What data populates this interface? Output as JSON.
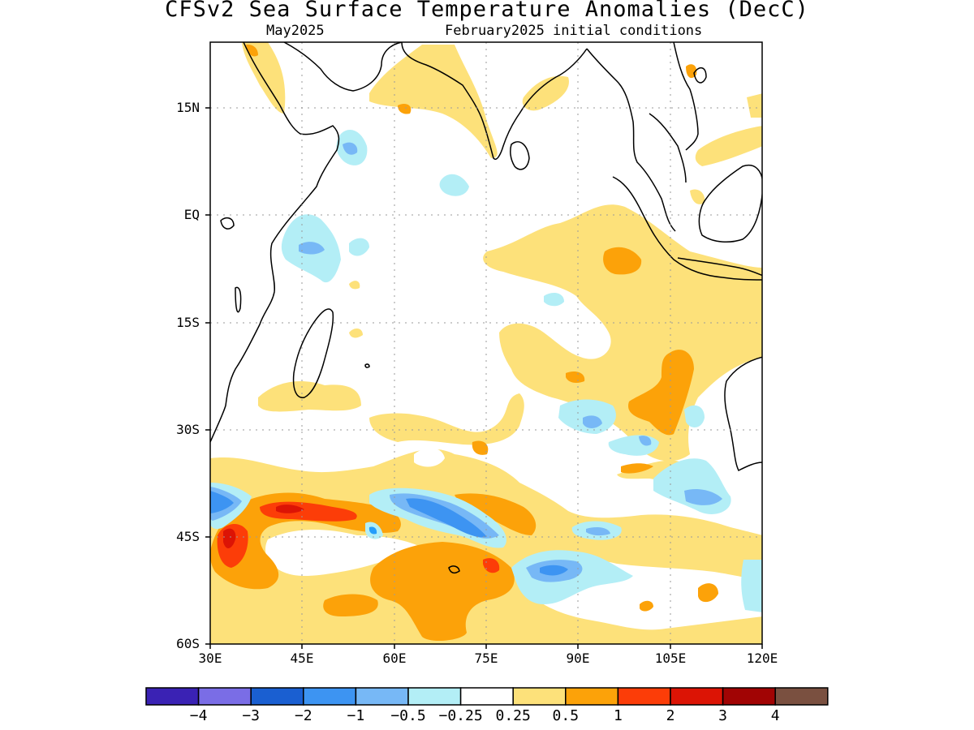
{
  "title": "CFSv2 Sea Surface Temperature Anomalies (DecC)",
  "subtitle_left": "May2025",
  "subtitle_right": "February2025 initial conditions",
  "axes": {
    "lat_labels": [
      "15N",
      "EQ",
      "15S",
      "30S",
      "45S",
      "60S"
    ],
    "lon_labels": [
      "30E",
      "45E",
      "60E",
      "75E",
      "90E",
      "105E",
      "120E"
    ]
  },
  "colorbar": {
    "colors": [
      "#3a22b4",
      "#7a6de6",
      "#1a5fd1",
      "#3d94f2",
      "#77b8f6",
      "#b3eef6",
      "#ffffff",
      "#fde17a",
      "#fca209",
      "#fc3d08",
      "#dc1405",
      "#a10404",
      "#7a5040"
    ],
    "labels": [
      "−4",
      "−3",
      "−2",
      "−1",
      "−0.5",
      "−0.25",
      "0.25",
      "0.5",
      "1",
      "2",
      "3",
      "4"
    ]
  },
  "map": {
    "extent_lon": [
      30,
      120
    ],
    "extent_lat": [
      -60,
      24
    ],
    "anomaly_colors": {
      "blue_mid": "#3d94f2",
      "blue_light": "#77b8f6",
      "cyan": "#b3eef6",
      "yellow": "#fde17a",
      "orange": "#fca209",
      "red_orange": "#fc3d08",
      "red": "#dc1405"
    }
  }
}
